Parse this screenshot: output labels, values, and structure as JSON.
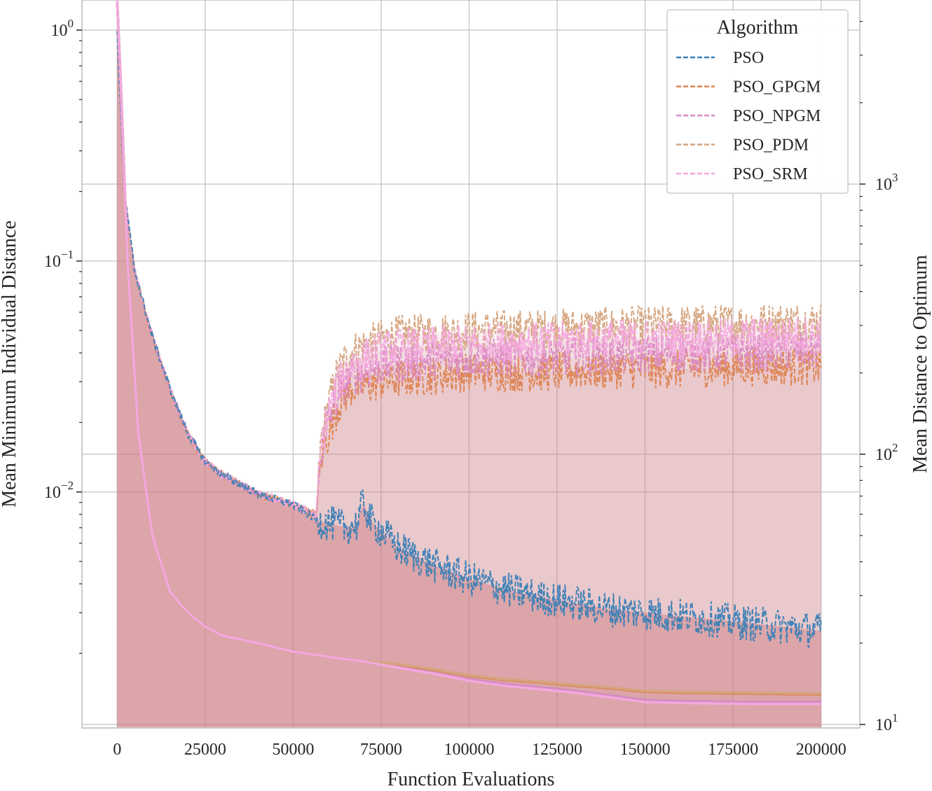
{
  "chart_data": {
    "type": "line",
    "xlabel": "Function Evaluations",
    "ylabel_left": "Mean Minimum Individual Distance",
    "ylabel_right": "Mean Distance to Optimum",
    "x_ticks": [
      0,
      25000,
      50000,
      75000,
      100000,
      125000,
      150000,
      175000,
      200000
    ],
    "x_tick_labels": [
      "0",
      "25000",
      "50000",
      "75000",
      "100000",
      "125000",
      "150000",
      "175000",
      "200000"
    ],
    "xlim": [
      -10000,
      211000
    ],
    "y_left_scale": "log",
    "y_left_lim": [
      0.00095,
      1.35
    ],
    "y_left_ticks": [
      {
        "base": "10",
        "exp": "0"
      },
      {
        "base": "10",
        "exp": "−1"
      },
      {
        "base": "10",
        "exp": "−2"
      }
    ],
    "y_right_scale": "log",
    "y_right_lim": [
      9.7,
      4800
    ],
    "y_right_ticks": [
      {
        "base": "10",
        "exp": "3"
      },
      {
        "base": "10",
        "exp": "2"
      },
      {
        "base": "10",
        "exp": "1"
      }
    ],
    "grid": true,
    "legend": {
      "title": "Algorithm",
      "placement": "top-right",
      "entries": [
        "PSO",
        "PSO_GPGM",
        "PSO_NPGM",
        "PSO_PDM",
        "PSO_SRM"
      ]
    },
    "series_colors": {
      "PSO": "#3a80b5",
      "PSO_GPGM": "#dd8452",
      "PSO_NPGM": "#da8bc3",
      "PSO_PDM": "#d5a47e",
      "PSO_SRM": "#f3a8dd"
    },
    "fill_color": "#cf7a80",
    "series": [
      {
        "name": "PSO",
        "axis": "left",
        "x": [
          0,
          2000,
          5000,
          10000,
          15000,
          20000,
          25000,
          30000,
          40000,
          50000,
          57000,
          62000,
          65000,
          68000,
          70000,
          72000,
          75000,
          80000,
          90000,
          100000,
          110000,
          120000,
          130000,
          140000,
          150000,
          160000,
          170000,
          180000,
          190000,
          200000
        ],
        "y": [
          1.0,
          0.2,
          0.09,
          0.047,
          0.028,
          0.018,
          0.0135,
          0.0118,
          0.0098,
          0.0088,
          0.0075,
          0.0072,
          0.007,
          0.0072,
          0.009,
          0.0075,
          0.0068,
          0.0057,
          0.0048,
          0.0042,
          0.0038,
          0.0035,
          0.0033,
          0.0031,
          0.003,
          0.0029,
          0.0028,
          0.0027,
          0.0026,
          0.0025
        ]
      },
      {
        "name": "PSO_GPGM",
        "axis": "left",
        "x": [
          0,
          2000,
          5000,
          10000,
          15000,
          20000,
          25000,
          30000,
          40000,
          50000,
          56500,
          58000,
          60000,
          63000,
          66000,
          70000,
          75000,
          80000,
          90000,
          100000,
          120000,
          140000,
          160000,
          180000,
          200000
        ],
        "y": [
          1.0,
          0.2,
          0.09,
          0.047,
          0.028,
          0.018,
          0.0135,
          0.0118,
          0.0098,
          0.0088,
          0.0079,
          0.014,
          0.018,
          0.024,
          0.028,
          0.029,
          0.03,
          0.031,
          0.032,
          0.033,
          0.033,
          0.034,
          0.034,
          0.035,
          0.035
        ]
      },
      {
        "name": "PSO_NPGM",
        "axis": "left",
        "x": [
          0,
          2000,
          5000,
          10000,
          15000,
          20000,
          25000,
          30000,
          40000,
          50000,
          56500,
          58000,
          60000,
          63000,
          66000,
          70000,
          75000,
          80000,
          90000,
          100000,
          120000,
          140000,
          160000,
          180000,
          200000
        ],
        "y": [
          1.0,
          0.2,
          0.09,
          0.047,
          0.028,
          0.018,
          0.0135,
          0.0118,
          0.0098,
          0.0088,
          0.0079,
          0.015,
          0.02,
          0.027,
          0.031,
          0.033,
          0.035,
          0.036,
          0.037,
          0.038,
          0.038,
          0.039,
          0.04,
          0.04,
          0.041
        ]
      },
      {
        "name": "PSO_PDM",
        "axis": "left",
        "x": [
          0,
          2000,
          5000,
          10000,
          15000,
          20000,
          25000,
          30000,
          40000,
          50000,
          56500,
          58000,
          60000,
          63000,
          66000,
          70000,
          75000,
          80000,
          90000,
          100000,
          120000,
          140000,
          160000,
          180000,
          200000
        ],
        "y": [
          1.0,
          0.2,
          0.09,
          0.047,
          0.028,
          0.018,
          0.0135,
          0.0118,
          0.0098,
          0.0088,
          0.0079,
          0.017,
          0.024,
          0.034,
          0.04,
          0.043,
          0.046,
          0.048,
          0.049,
          0.05,
          0.051,
          0.052,
          0.053,
          0.054,
          0.055
        ]
      },
      {
        "name": "PSO_SRM",
        "axis": "left",
        "x": [
          0,
          2000,
          5000,
          10000,
          15000,
          20000,
          25000,
          30000,
          40000,
          50000,
          56500,
          58000,
          60000,
          63000,
          66000,
          70000,
          75000,
          80000,
          90000,
          100000,
          120000,
          140000,
          160000,
          180000,
          200000
        ],
        "y": [
          1.0,
          0.2,
          0.09,
          0.047,
          0.028,
          0.018,
          0.0135,
          0.0118,
          0.0098,
          0.0088,
          0.0079,
          0.016,
          0.022,
          0.03,
          0.035,
          0.038,
          0.041,
          0.042,
          0.043,
          0.044,
          0.045,
          0.046,
          0.046,
          0.047,
          0.048
        ]
      },
      {
        "name": "PSO",
        "axis": "right",
        "x": [
          0,
          1000,
          3000,
          6000,
          10000,
          15000,
          20000,
          25000,
          30000,
          40000,
          50000,
          60000,
          70000,
          80000,
          90000,
          100000,
          110000,
          120000,
          130000,
          140000,
          150000,
          160000,
          180000,
          200000
        ],
        "y": [
          4800,
          2400,
          500,
          120,
          50,
          31,
          26,
          23,
          21.3,
          20,
          18.6,
          17.8,
          17.1,
          16.3,
          15.5,
          14.7,
          14.1,
          13.7,
          13.3,
          12.8,
          12.3,
          12.2,
          12.1,
          12.1
        ]
      },
      {
        "name": "PSO_GPGM",
        "axis": "right",
        "x": [
          0,
          1000,
          3000,
          6000,
          10000,
          15000,
          20000,
          25000,
          30000,
          40000,
          50000,
          60000,
          70000,
          80000,
          90000,
          100000,
          110000,
          120000,
          130000,
          140000,
          150000,
          160000,
          180000,
          200000
        ],
        "y": [
          4800,
          2400,
          500,
          120,
          50,
          31,
          26,
          23,
          21.3,
          20,
          18.6,
          17.8,
          17.1,
          16.6,
          15.9,
          15.1,
          14.6,
          14.3,
          13.9,
          13.6,
          13.2,
          13.1,
          13.0,
          12.9
        ]
      },
      {
        "name": "PSO_NPGM",
        "axis": "right",
        "x": [
          0,
          1000,
          3000,
          6000,
          10000,
          15000,
          20000,
          25000,
          30000,
          40000,
          50000,
          60000,
          70000,
          80000,
          90000,
          100000,
          110000,
          120000,
          130000,
          140000,
          150000,
          160000,
          180000,
          200000
        ],
        "y": [
          4800,
          2400,
          500,
          120,
          50,
          31,
          26,
          23,
          21.3,
          20,
          18.6,
          17.8,
          17.1,
          16.3,
          15.5,
          14.7,
          14.1,
          13.7,
          13.3,
          12.8,
          12.3,
          12.2,
          12.1,
          12.1
        ]
      },
      {
        "name": "PSO_PDM",
        "axis": "right",
        "x": [
          0,
          1000,
          3000,
          6000,
          10000,
          15000,
          20000,
          25000,
          30000,
          40000,
          50000,
          60000,
          70000,
          80000,
          90000,
          100000,
          110000,
          120000,
          130000,
          140000,
          150000,
          160000,
          180000,
          200000
        ],
        "y": [
          4800,
          2400,
          500,
          120,
          50,
          31,
          26,
          23,
          21.3,
          20,
          18.6,
          17.8,
          17.1,
          16.7,
          16.0,
          15.2,
          14.7,
          14.4,
          14.0,
          13.7,
          13.3,
          13.2,
          13.1,
          13.0
        ]
      },
      {
        "name": "PSO_SRM",
        "axis": "right",
        "x": [
          0,
          1000,
          3000,
          6000,
          10000,
          15000,
          20000,
          25000,
          30000,
          40000,
          50000,
          60000,
          70000,
          80000,
          90000,
          100000,
          110000,
          120000,
          130000,
          140000,
          150000,
          160000,
          180000,
          200000
        ],
        "y": [
          4800,
          2400,
          500,
          120,
          50,
          31,
          26,
          23,
          21.3,
          20,
          18.6,
          17.8,
          17.1,
          16.2,
          15.4,
          14.5,
          13.9,
          13.5,
          13.1,
          12.6,
          12.1,
          12.0,
          11.9,
          11.9
        ]
      }
    ]
  }
}
